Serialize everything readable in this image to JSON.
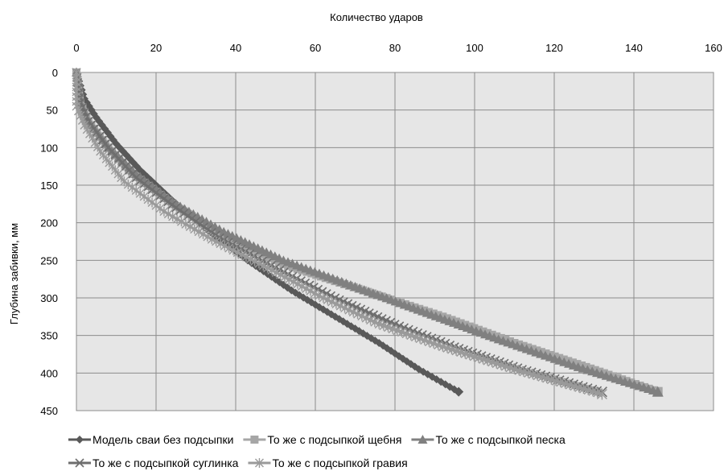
{
  "chart_data": {
    "type": "line",
    "xlabel": "Количество ударов",
    "ylabel": "Глубина забивки, мм",
    "xlim": [
      0,
      160
    ],
    "ylim": [
      0,
      450
    ],
    "y_inverted": true,
    "x_axis_position": "top",
    "x_ticks": [
      "0",
      "20",
      "40",
      "60",
      "80",
      "100",
      "120",
      "140",
      "160"
    ],
    "y_ticks": [
      "0",
      "50",
      "100",
      "150",
      "200",
      "250",
      "300",
      "350",
      "400",
      "450"
    ],
    "grid": true,
    "legend_position": "bottom",
    "series": [
      {
        "name": "Модель сваи без подсыпки",
        "marker": "diamond",
        "color": "#595959",
        "points": [
          [
            0,
            0
          ],
          [
            2,
            35
          ],
          [
            5,
            60
          ],
          [
            10,
            95
          ],
          [
            16,
            130
          ],
          [
            24,
            170
          ],
          [
            33,
            210
          ],
          [
            43,
            250
          ],
          [
            54,
            290
          ],
          [
            65,
            325
          ],
          [
            76,
            360
          ],
          [
            86,
            395
          ],
          [
            96,
            425
          ]
        ]
      },
      {
        "name": "То же с подсыпкой щебня",
        "marker": "square",
        "color": "#a6a6a6",
        "points": [
          [
            0,
            0
          ],
          [
            1,
            40
          ],
          [
            3,
            65
          ],
          [
            8,
            100
          ],
          [
            14,
            135
          ],
          [
            24,
            175
          ],
          [
            36,
            215
          ],
          [
            52,
            255
          ],
          [
            72,
            290
          ],
          [
            92,
            325
          ],
          [
            110,
            360
          ],
          [
            128,
            392
          ],
          [
            146,
            425
          ]
        ]
      },
      {
        "name": "То же с подсыпкой песка",
        "marker": "triangle",
        "color": "#808080",
        "points": [
          [
            0,
            0
          ],
          [
            1,
            40
          ],
          [
            3,
            65
          ],
          [
            8,
            100
          ],
          [
            15,
            135
          ],
          [
            25,
            175
          ],
          [
            37,
            212
          ],
          [
            52,
            250
          ],
          [
            70,
            285
          ],
          [
            88,
            320
          ],
          [
            106,
            355
          ],
          [
            126,
            392
          ],
          [
            146,
            425
          ]
        ]
      },
      {
        "name": "То же с подсыпкой суглинка",
        "marker": "x",
        "color": "#6e6e6e",
        "points": [
          [
            0,
            0
          ],
          [
            1,
            40
          ],
          [
            3,
            65
          ],
          [
            8,
            100
          ],
          [
            15,
            140
          ],
          [
            25,
            180
          ],
          [
            36,
            220
          ],
          [
            50,
            260
          ],
          [
            65,
            300
          ],
          [
            80,
            335
          ],
          [
            95,
            365
          ],
          [
            112,
            395
          ],
          [
            132,
            425
          ]
        ]
      },
      {
        "name": "То же с подсыпкой гравия",
        "marker": "star",
        "color": "#9a9a9a",
        "points": [
          [
            0,
            0
          ],
          [
            0,
            45
          ],
          [
            2,
            70
          ],
          [
            6,
            105
          ],
          [
            12,
            145
          ],
          [
            22,
            185
          ],
          [
            34,
            222
          ],
          [
            48,
            260
          ],
          [
            62,
            300
          ],
          [
            76,
            335
          ],
          [
            92,
            365
          ],
          [
            110,
            395
          ],
          [
            132,
            428
          ]
        ]
      }
    ]
  }
}
